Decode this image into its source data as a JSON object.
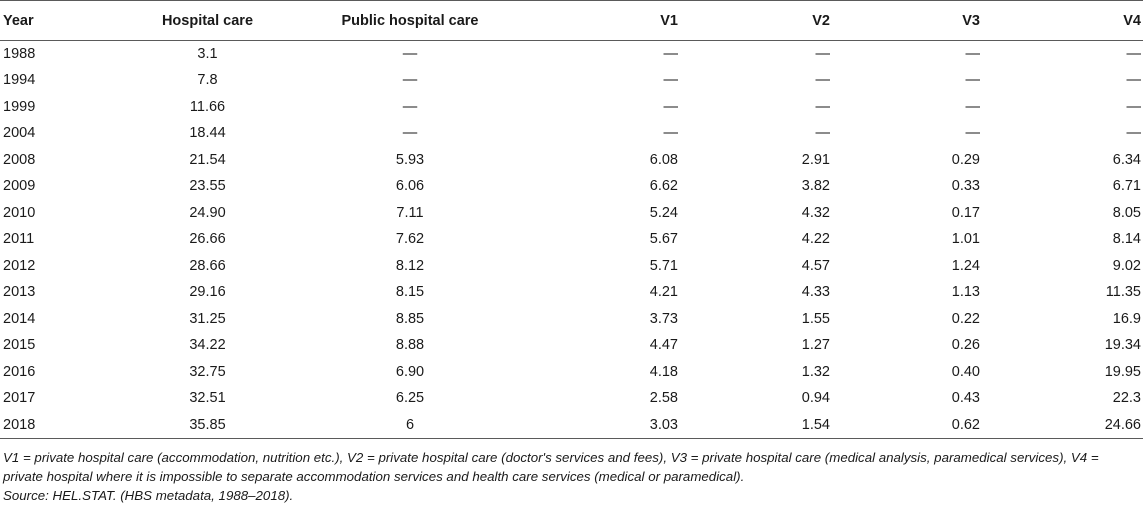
{
  "table": {
    "headers": [
      "Year",
      "Hospital care",
      "Public hospital care",
      "V1",
      "V2",
      "V3",
      "V4"
    ],
    "rows": [
      [
        "1988",
        "3.1",
        "—",
        "—",
        "—",
        "—",
        "—"
      ],
      [
        "1994",
        "7.8",
        "—",
        "—",
        "—",
        "—",
        "—"
      ],
      [
        "1999",
        "11.66",
        "—",
        "—",
        "—",
        "—",
        "—"
      ],
      [
        "2004",
        "18.44",
        "—",
        "—",
        "—",
        "—",
        "—"
      ],
      [
        "2008",
        "21.54",
        "5.93",
        "6.08",
        "2.91",
        "0.29",
        "6.34"
      ],
      [
        "2009",
        "23.55",
        "6.06",
        "6.62",
        "3.82",
        "0.33",
        "6.71"
      ],
      [
        "2010",
        "24.90",
        "7.11",
        "5.24",
        "4.32",
        "0.17",
        "8.05"
      ],
      [
        "2011",
        "26.66",
        "7.62",
        "5.67",
        "4.22",
        "1.01",
        "8.14"
      ],
      [
        "2012",
        "28.66",
        "8.12",
        "5.71",
        "4.57",
        "1.24",
        "9.02"
      ],
      [
        "2013",
        "29.16",
        "8.15",
        "4.21",
        "4.33",
        "1.13",
        "11.35"
      ],
      [
        "2014",
        "31.25",
        "8.85",
        "3.73",
        "1.55",
        "0.22",
        "16.9"
      ],
      [
        "2015",
        "34.22",
        "8.88",
        "4.47",
        "1.27",
        "0.26",
        "19.34"
      ],
      [
        "2016",
        "32.75",
        "6.90",
        "4.18",
        "1.32",
        "0.40",
        "19.95"
      ],
      [
        "2017",
        "32.51",
        "6.25",
        "2.58",
        "0.94",
        "0.43",
        "22.3"
      ],
      [
        "2018",
        "35.85",
        "6",
        "3.03",
        "1.54",
        "0.62",
        "24.66"
      ]
    ]
  },
  "footnote": {
    "definitions": "V1 = private hospital care (accommodation, nutrition etc.), V2 = private hospital care (doctor's services and fees), V3 = private hospital care (medical analysis, paramedical services), V4 = private hospital where it is impossible to separate accommodation services and health care services (medical or paramedical).",
    "source": "Source: HEL.STAT. (HBS metadata, 1988–2018)."
  }
}
